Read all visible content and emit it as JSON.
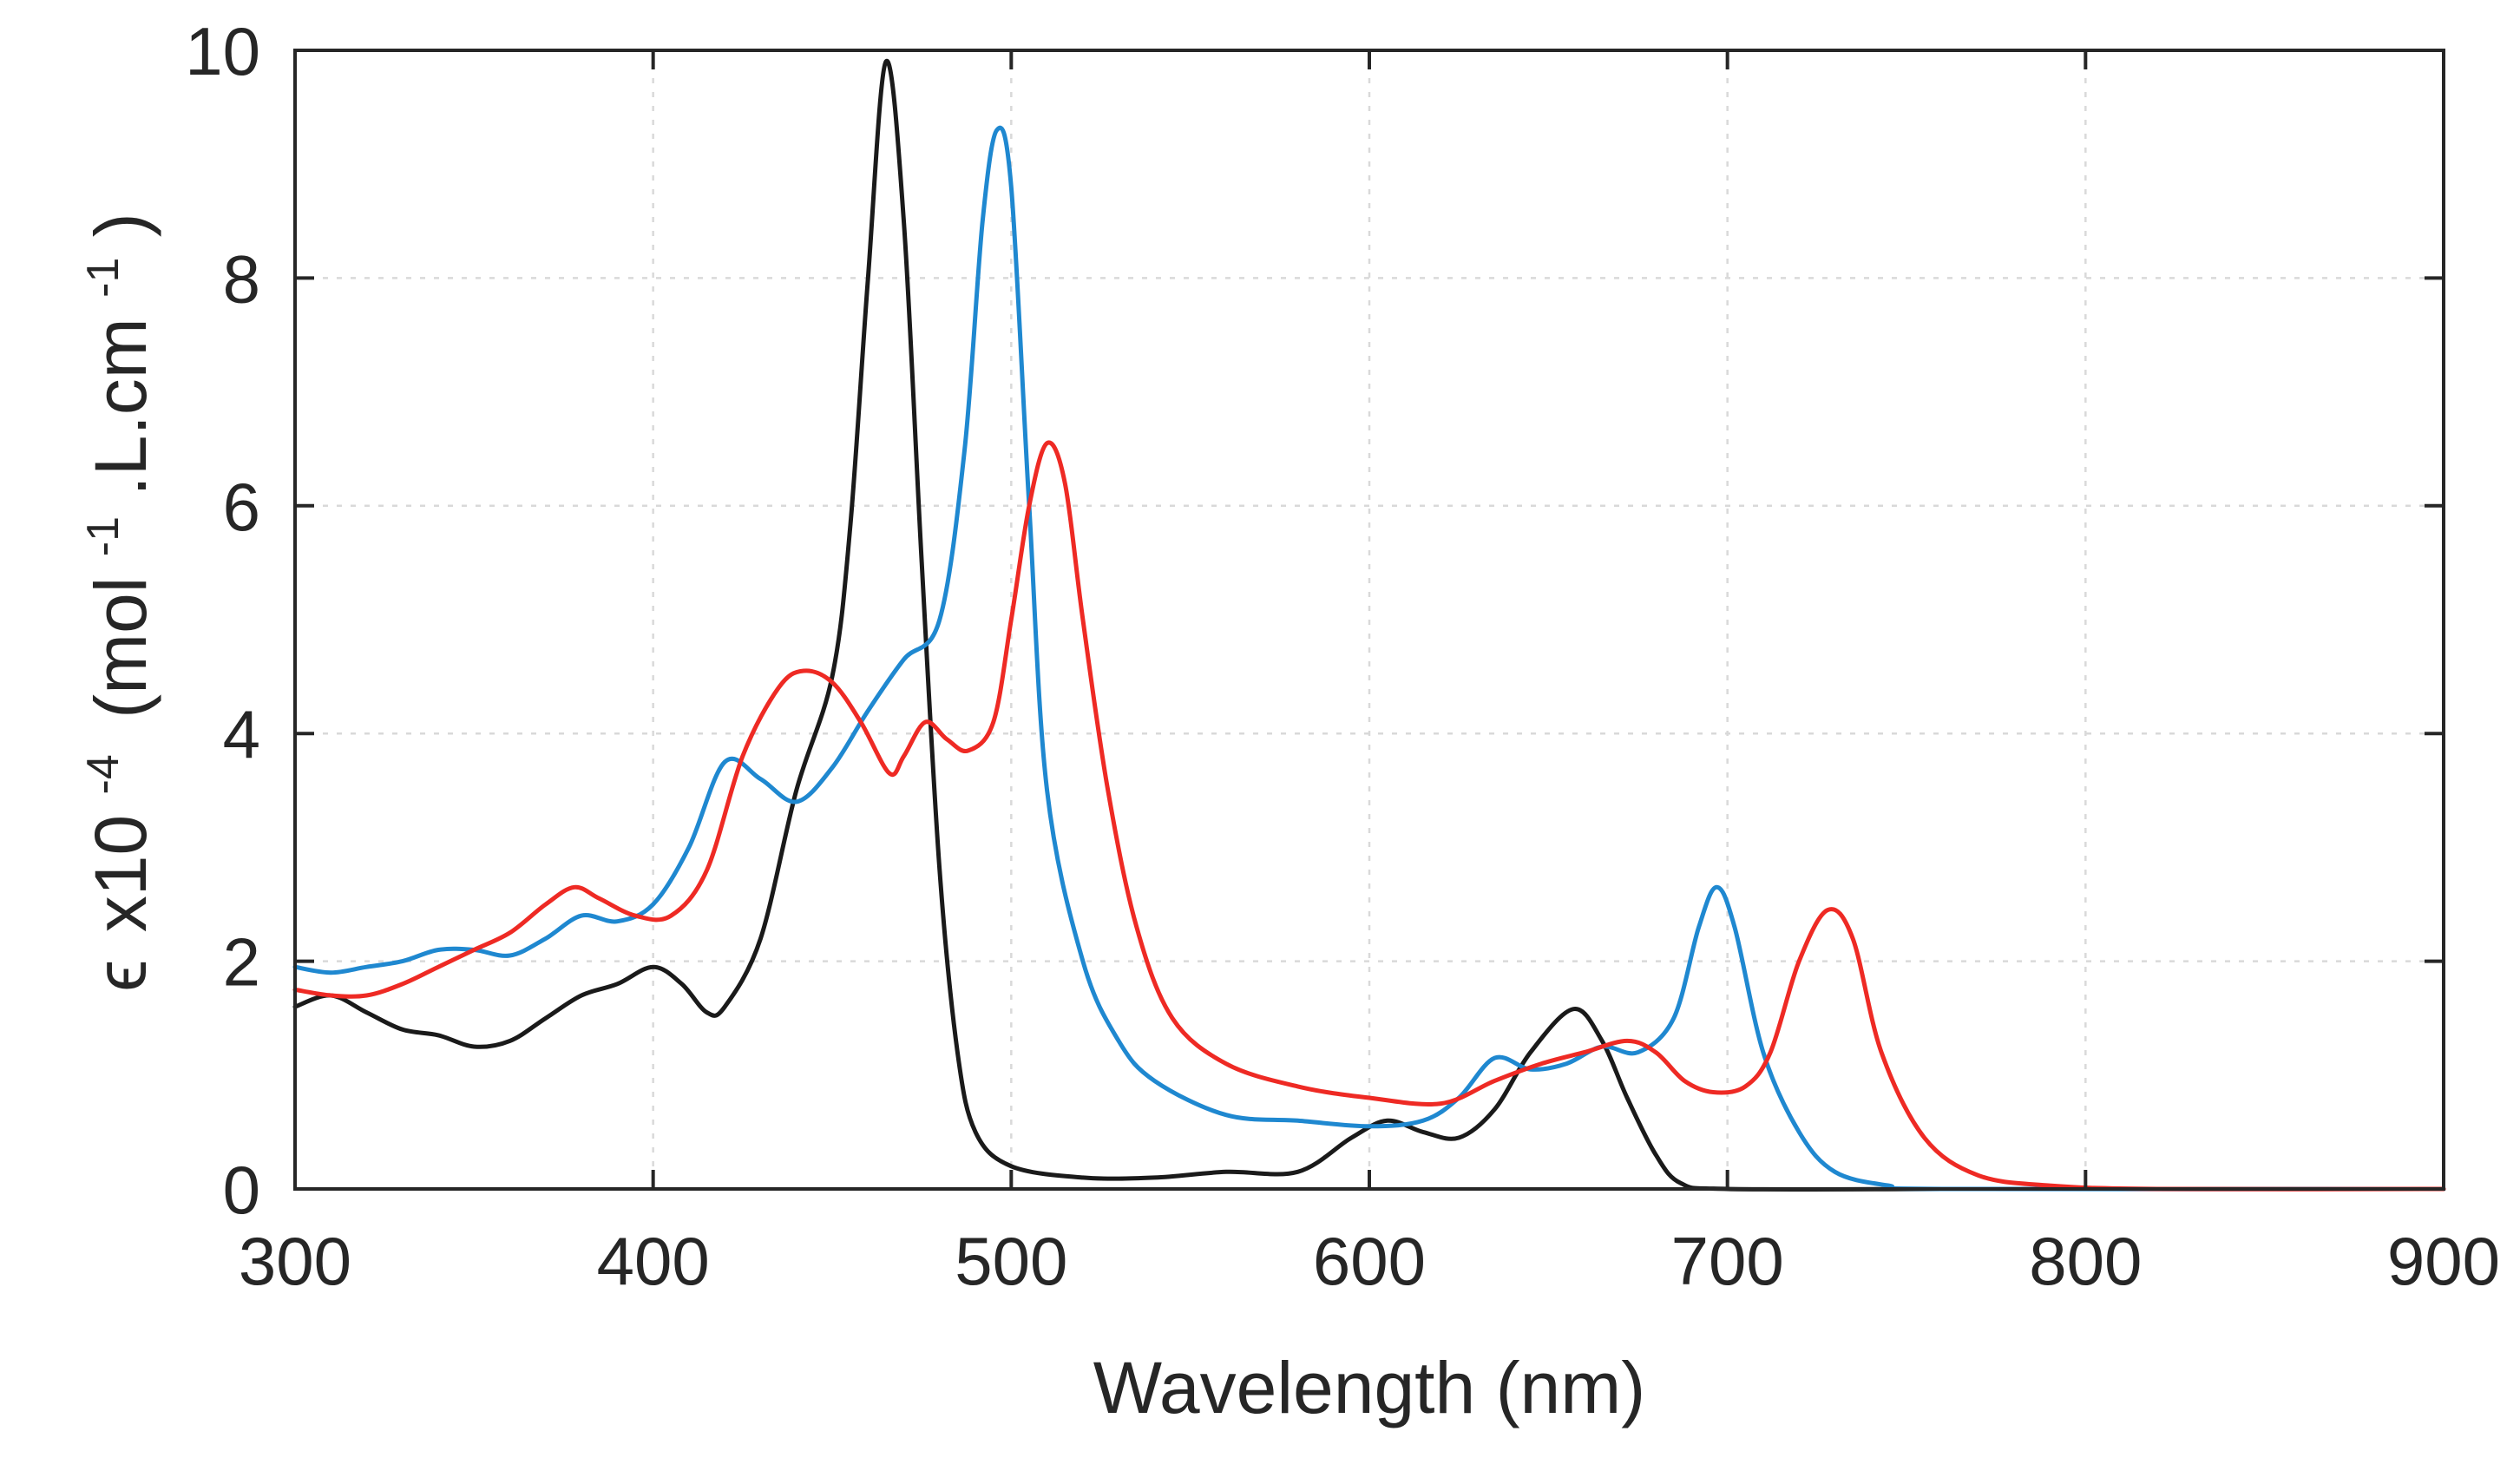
{
  "chart_data": {
    "type": "line",
    "title": "",
    "xlabel": "Wavelength (nm)",
    "ylabel": {
      "epsilon": "ϵ",
      "times": "x10",
      "power": "-4",
      "units_open": "(mol",
      "exp1": "-1",
      "units_mid": ".L.cm",
      "exp2": "-1",
      "units_close": ")"
    },
    "xlim": [
      300,
      900
    ],
    "ylim": [
      0,
      10
    ],
    "grid": true,
    "xticks": [
      300,
      400,
      500,
      600,
      700,
      800,
      900
    ],
    "yticks": [
      0,
      2,
      4,
      6,
      8,
      10
    ],
    "xtick_labels": [
      "300",
      "400",
      "500",
      "600",
      "700",
      "800",
      "900"
    ],
    "ytick_labels": [
      "0",
      "2",
      "4",
      "6",
      "8",
      "10"
    ],
    "series": [
      {
        "name": "black",
        "color": "#1a1a1a",
        "points": [
          [
            300,
            1.6
          ],
          [
            310,
            1.7
          ],
          [
            320,
            1.55
          ],
          [
            330,
            1.4
          ],
          [
            340,
            1.35
          ],
          [
            350,
            1.25
          ],
          [
            360,
            1.3
          ],
          [
            370,
            1.5
          ],
          [
            380,
            1.7
          ],
          [
            390,
            1.8
          ],
          [
            400,
            1.95
          ],
          [
            408,
            1.8
          ],
          [
            415,
            1.55
          ],
          [
            420,
            1.6
          ],
          [
            430,
            2.2
          ],
          [
            440,
            3.5
          ],
          [
            450,
            4.5
          ],
          [
            455,
            5.8
          ],
          [
            460,
            8.0
          ],
          [
            465,
            9.9
          ],
          [
            470,
            8.5
          ],
          [
            475,
            5.5
          ],
          [
            480,
            2.8
          ],
          [
            485,
            1.2
          ],
          [
            490,
            0.5
          ],
          [
            500,
            0.2
          ],
          [
            520,
            0.1
          ],
          [
            540,
            0.1
          ],
          [
            560,
            0.15
          ],
          [
            580,
            0.15
          ],
          [
            595,
            0.45
          ],
          [
            605,
            0.6
          ],
          [
            615,
            0.5
          ],
          [
            625,
            0.45
          ],
          [
            635,
            0.7
          ],
          [
            645,
            1.2
          ],
          [
            657,
            1.58
          ],
          [
            665,
            1.3
          ],
          [
            672,
            0.8
          ],
          [
            680,
            0.3
          ],
          [
            687,
            0.05
          ],
          [
            700,
            0.0
          ],
          [
            760,
            0.0
          ],
          [
            780,
            0.0
          ],
          [
            800,
            0.0
          ],
          [
            900,
            0.0
          ]
        ]
      },
      {
        "name": "blue",
        "color": "#1f88d0",
        "points": [
          [
            300,
            1.95
          ],
          [
            310,
            1.9
          ],
          [
            320,
            1.95
          ],
          [
            330,
            2.0
          ],
          [
            340,
            2.1
          ],
          [
            350,
            2.1
          ],
          [
            360,
            2.05
          ],
          [
            370,
            2.2
          ],
          [
            380,
            2.4
          ],
          [
            390,
            2.35
          ],
          [
            400,
            2.5
          ],
          [
            410,
            3.0
          ],
          [
            420,
            3.75
          ],
          [
            430,
            3.6
          ],
          [
            440,
            3.4
          ],
          [
            450,
            3.7
          ],
          [
            460,
            4.2
          ],
          [
            470,
            4.65
          ],
          [
            480,
            5.0
          ],
          [
            487,
            6.5
          ],
          [
            492,
            8.5
          ],
          [
            496,
            9.3
          ],
          [
            500,
            8.8
          ],
          [
            505,
            6.0
          ],
          [
            510,
            3.5
          ],
          [
            520,
            2.0
          ],
          [
            530,
            1.3
          ],
          [
            540,
            0.95
          ],
          [
            560,
            0.65
          ],
          [
            580,
            0.6
          ],
          [
            600,
            0.55
          ],
          [
            615,
            0.6
          ],
          [
            625,
            0.8
          ],
          [
            635,
            1.15
          ],
          [
            645,
            1.05
          ],
          [
            655,
            1.1
          ],
          [
            665,
            1.25
          ],
          [
            675,
            1.2
          ],
          [
            685,
            1.5
          ],
          [
            692,
            2.3
          ],
          [
            697,
            2.65
          ],
          [
            702,
            2.3
          ],
          [
            710,
            1.2
          ],
          [
            720,
            0.5
          ],
          [
            730,
            0.15
          ],
          [
            745,
            0.03
          ],
          [
            760,
            0.0
          ],
          [
            900,
            0.0
          ]
        ]
      },
      {
        "name": "red",
        "color": "#ee2a24",
        "points": [
          [
            300,
            1.75
          ],
          [
            310,
            1.7
          ],
          [
            320,
            1.7
          ],
          [
            330,
            1.8
          ],
          [
            340,
            1.95
          ],
          [
            350,
            2.1
          ],
          [
            360,
            2.25
          ],
          [
            370,
            2.5
          ],
          [
            378,
            2.65
          ],
          [
            385,
            2.55
          ],
          [
            395,
            2.4
          ],
          [
            405,
            2.4
          ],
          [
            415,
            2.8
          ],
          [
            425,
            3.8
          ],
          [
            435,
            4.4
          ],
          [
            442,
            4.55
          ],
          [
            450,
            4.45
          ],
          [
            458,
            4.1
          ],
          [
            466,
            3.65
          ],
          [
            470,
            3.8
          ],
          [
            476,
            4.1
          ],
          [
            482,
            3.95
          ],
          [
            488,
            3.85
          ],
          [
            495,
            4.1
          ],
          [
            500,
            5.0
          ],
          [
            505,
            6.0
          ],
          [
            510,
            6.55
          ],
          [
            515,
            6.2
          ],
          [
            520,
            5.0
          ],
          [
            527,
            3.5
          ],
          [
            535,
            2.3
          ],
          [
            545,
            1.5
          ],
          [
            560,
            1.1
          ],
          [
            580,
            0.9
          ],
          [
            600,
            0.8
          ],
          [
            620,
            0.75
          ],
          [
            635,
            0.95
          ],
          [
            648,
            1.1
          ],
          [
            660,
            1.2
          ],
          [
            672,
            1.3
          ],
          [
            680,
            1.2
          ],
          [
            688,
            0.95
          ],
          [
            696,
            0.85
          ],
          [
            705,
            0.9
          ],
          [
            712,
            1.2
          ],
          [
            720,
            2.0
          ],
          [
            728,
            2.45
          ],
          [
            735,
            2.2
          ],
          [
            743,
            1.2
          ],
          [
            755,
            0.45
          ],
          [
            770,
            0.12
          ],
          [
            790,
            0.03
          ],
          [
            820,
            0.0
          ],
          [
            900,
            0.0
          ]
        ]
      }
    ]
  }
}
